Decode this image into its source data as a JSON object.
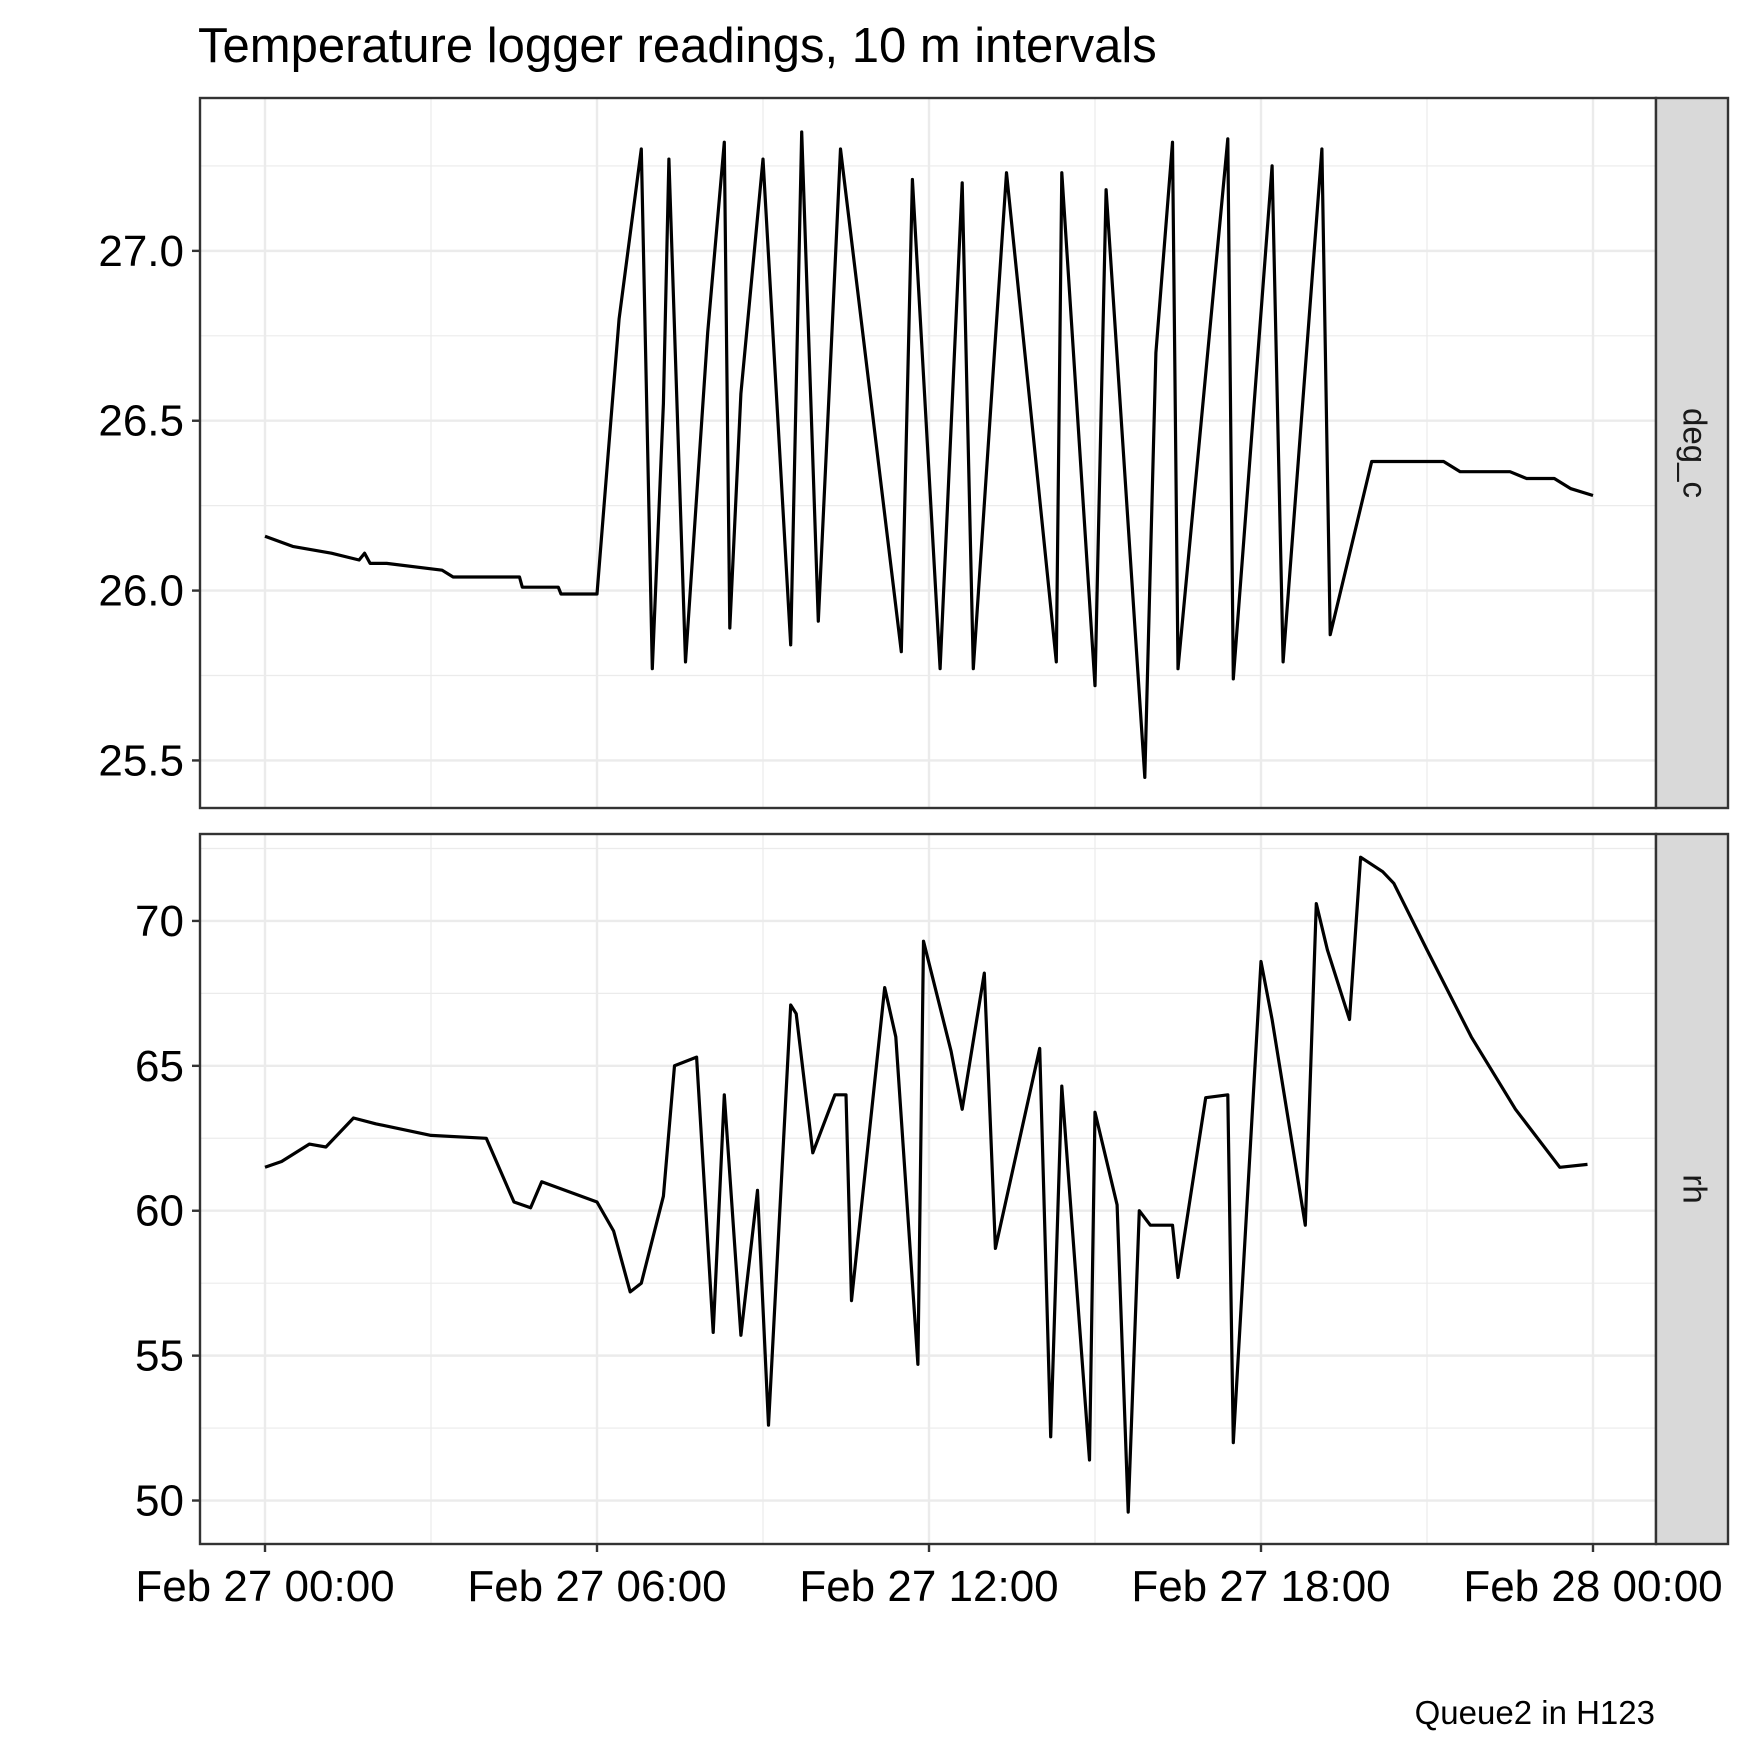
{
  "title": "Temperature logger readings, 10 m intervals",
  "caption": "Queue2 in H123",
  "chart_data": {
    "type": "line",
    "layout": "faceted rows, shared x axis",
    "x_range": [
      "Feb 27 00:00",
      "Feb 28 00:00"
    ],
    "x_ticks": [
      "Feb 27 00:00",
      "Feb 27 06:00",
      "Feb 27 12:00",
      "Feb 27 18:00",
      "Feb 28 00:00"
    ],
    "grid": true,
    "panels": [
      {
        "strip": "deg_c",
        "ylim": [
          25.36,
          27.45
        ],
        "y_ticks": [
          25.5,
          26.0,
          26.5,
          27.0
        ],
        "y_tick_labels": [
          "25.5",
          "26.0",
          "26.5",
          "27.0"
        ],
        "x_hours": [
          0,
          0.5,
          1.2,
          1.7,
          1.8,
          1.9,
          2.0,
          2.2,
          3.2,
          3.4,
          4.6,
          4.65,
          5.3,
          5.35,
          6.0,
          6.2,
          6.4,
          6.8,
          7.0,
          7.2,
          7.3,
          7.6,
          8.0,
          8.3,
          8.4,
          8.6,
          9.0,
          9.5,
          9.7,
          10.0,
          10.2,
          10.4,
          11.5,
          11.7,
          12.2,
          12.6,
          12.8,
          13.4,
          14.3,
          14.4,
          15.0,
          15.2,
          15.9,
          16.1,
          16.4,
          16.5,
          17.4,
          17.5,
          18.2,
          18.4,
          19.1,
          19.25,
          20.0,
          20.2,
          21.3,
          21.6,
          22.5,
          22.8,
          23.3,
          23.6,
          24.0
        ],
        "values": [
          26.16,
          26.13,
          26.11,
          26.09,
          26.11,
          26.08,
          26.08,
          26.08,
          26.06,
          26.04,
          26.04,
          26.01,
          26.01,
          25.99,
          25.99,
          26.4,
          26.8,
          27.3,
          25.77,
          26.55,
          27.27,
          25.79,
          26.76,
          27.32,
          25.89,
          26.58,
          27.27,
          25.84,
          27.35,
          25.91,
          26.6,
          27.3,
          25.82,
          27.21,
          25.77,
          27.2,
          25.77,
          27.23,
          25.79,
          27.23,
          25.72,
          27.18,
          25.45,
          26.7,
          27.32,
          25.77,
          27.33,
          25.74,
          27.25,
          25.79,
          27.3,
          25.87,
          26.38,
          26.38,
          26.38,
          26.35,
          26.35,
          26.33,
          26.33,
          26.3,
          26.28
        ]
      },
      {
        "strip": "rh",
        "ylim": [
          48.5,
          73.0
        ],
        "y_ticks": [
          50,
          55,
          60,
          65,
          70
        ],
        "y_tick_labels": [
          "50",
          "55",
          "60",
          "65",
          "70"
        ],
        "x_hours": [
          0,
          0.3,
          0.8,
          1.1,
          1.6,
          2.0,
          3.0,
          4.0,
          4.5,
          4.8,
          5.0,
          6.0,
          6.3,
          6.6,
          6.8,
          7.2,
          7.4,
          7.8,
          8.1,
          8.3,
          8.6,
          8.9,
          9.1,
          9.5,
          9.6,
          9.9,
          10.3,
          10.5,
          10.6,
          11.2,
          11.4,
          11.8,
          11.9,
          12.4,
          12.6,
          13.0,
          13.2,
          14.0,
          14.2,
          14.4,
          14.9,
          15.0,
          15.4,
          15.6,
          15.8,
          16.0,
          16.4,
          16.5,
          17.0,
          17.4,
          17.5,
          18.0,
          18.2,
          18.8,
          19.0,
          19.2,
          19.6,
          19.8,
          20.2,
          20.4,
          21.0,
          21.8,
          22.6,
          23.4,
          23.9
        ],
        "values": [
          61.5,
          61.7,
          62.3,
          62.2,
          63.2,
          63.0,
          62.6,
          62.5,
          60.3,
          60.1,
          61.0,
          60.3,
          59.3,
          57.2,
          57.5,
          60.5,
          65.0,
          65.3,
          55.8,
          64.0,
          55.7,
          60.7,
          52.6,
          67.1,
          66.8,
          62.0,
          64.0,
          64.0,
          56.9,
          67.7,
          66.0,
          54.7,
          69.3,
          65.5,
          63.5,
          68.2,
          58.7,
          65.6,
          52.2,
          64.3,
          51.4,
          63.4,
          60.2,
          49.6,
          60.0,
          59.5,
          59.5,
          57.7,
          63.9,
          64.0,
          52.0,
          68.6,
          66.6,
          59.5,
          70.6,
          69.0,
          66.6,
          72.2,
          71.7,
          71.3,
          69.0,
          66.0,
          63.5,
          61.5,
          61.6
        ]
      }
    ]
  }
}
